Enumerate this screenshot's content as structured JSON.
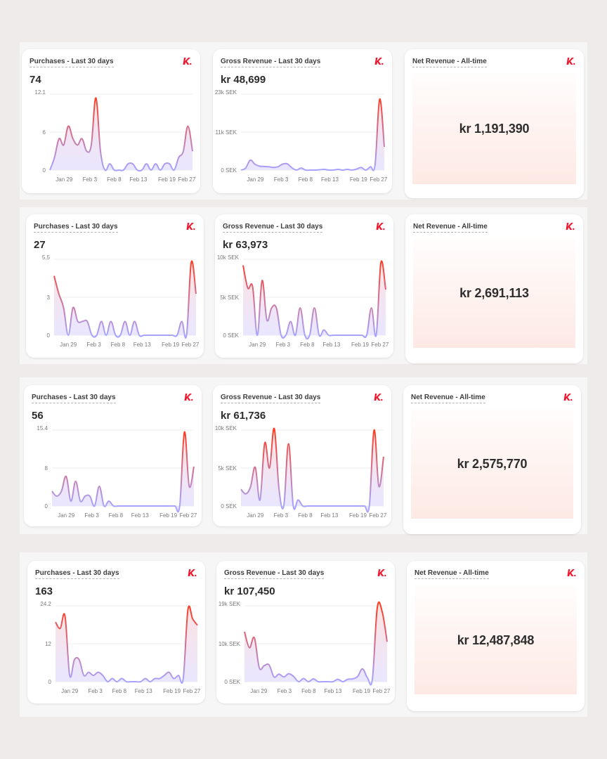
{
  "colors": {
    "line_top": "#ff3b1f",
    "line_bottom": "#a7a3ff",
    "fill_top": "#fde3e1",
    "fill_bottom": "#e9e6ff",
    "brand": "#f0182e"
  },
  "logo_icon": "k-brand-logo-icon",
  "rows": [
    {
      "purchases": {
        "title": "Purchases - Last 30 days",
        "value": "74"
      },
      "gross": {
        "title": "Gross Revenue - Last 30 days",
        "value": "kr 48,699"
      },
      "net": {
        "title": "Net Revenue - All-time",
        "value": "kr 1,191,390"
      }
    },
    {
      "purchases": {
        "title": "Purchases - Last 30 days",
        "value": "27"
      },
      "gross": {
        "title": "Gross Revenue - Last 30 days",
        "value": "kr 63,973"
      },
      "net": {
        "title": "Net Revenue - All-time",
        "value": "kr 2,691,113"
      }
    },
    {
      "purchases": {
        "title": "Purchases - Last 30 days",
        "value": "56"
      },
      "gross": {
        "title": "Gross Revenue - Last 30 days",
        "value": "kr 61,736"
      },
      "net": {
        "title": "Net Revenue - All-time",
        "value": "kr 2,575,770"
      }
    },
    {
      "purchases": {
        "title": "Purchases - Last 30 days",
        "value": "163"
      },
      "gross": {
        "title": "Gross Revenue - Last 30 days",
        "value": "kr 107,450"
      },
      "net": {
        "title": "Net Revenue - All-time",
        "value": "kr 12,487,848"
      }
    }
  ],
  "chart_data": [
    {
      "id": "r0-purchases",
      "type": "area",
      "title": "Purchases - Last 30 days",
      "x_ticks": [
        "Jan 29",
        "Feb 3",
        "Feb 8",
        "Feb 13",
        "Feb 19",
        "Feb 27"
      ],
      "y_ticks": [
        "0",
        "6",
        "12.1"
      ],
      "ylim": [
        0,
        12.1
      ],
      "values": [
        0,
        2,
        5,
        4,
        7,
        5,
        4,
        5,
        3,
        4,
        11.5,
        3,
        0,
        1,
        0,
        0,
        0,
        1,
        1,
        0,
        0,
        1,
        0,
        1,
        0,
        1,
        1,
        0,
        2,
        3,
        7,
        3
      ]
    },
    {
      "id": "r0-gross",
      "type": "area",
      "title": "Gross Revenue - Last 30 days",
      "x_ticks": [
        "Jan 29",
        "Feb 3",
        "Feb 8",
        "Feb 13",
        "Feb 19",
        "Feb 27"
      ],
      "y_ticks": [
        "0 SEK",
        "11k SEK",
        "23k SEK"
      ],
      "ylim": [
        0,
        23000
      ],
      "values": [
        0,
        600,
        3000,
        1800,
        1200,
        1100,
        1000,
        800,
        1000,
        1800,
        1900,
        700,
        0,
        600,
        0,
        0,
        0,
        100,
        200,
        0,
        0,
        200,
        0,
        200,
        0,
        300,
        800,
        0,
        1000,
        1600,
        21500,
        7000
      ]
    },
    {
      "id": "r1-purchases",
      "type": "area",
      "title": "Purchases - Last 30 days",
      "x_ticks": [
        "Jan 29",
        "Feb 3",
        "Feb 8",
        "Feb 13",
        "Feb 19",
        "Feb 27"
      ],
      "y_ticks": [
        "0",
        "3",
        "5.5"
      ],
      "ylim": [
        0,
        5.5
      ],
      "values": [
        4.3,
        3,
        2,
        0,
        2,
        1,
        1,
        1,
        0,
        0,
        1,
        0,
        1,
        0,
        0,
        1,
        0,
        1,
        0,
        0,
        0,
        0,
        0,
        0,
        0,
        0,
        0,
        1,
        0,
        5.3,
        3
      ]
    },
    {
      "id": "r1-gross",
      "type": "area",
      "title": "Gross Revenue - Last 30 days",
      "x_ticks": [
        "Jan 29",
        "Feb 3",
        "Feb 8",
        "Feb 13",
        "Feb 19",
        "Feb 27"
      ],
      "y_ticks": [
        "0 SEK",
        "5k SEK",
        "10k SEK"
      ],
      "ylim": [
        0,
        10000
      ],
      "values": [
        9200,
        6200,
        6400,
        0,
        7200,
        2000,
        3600,
        3600,
        0,
        0,
        1800,
        0,
        3600,
        0,
        0,
        3600,
        0,
        700,
        0,
        0,
        0,
        0,
        0,
        0,
        0,
        0,
        0,
        3600,
        0,
        9600,
        6000
      ]
    },
    {
      "id": "r2-purchases",
      "type": "area",
      "title": "Purchases - Last 30 days",
      "x_ticks": [
        "Jan 29",
        "Feb 3",
        "Feb 8",
        "Feb 13",
        "Feb 19",
        "Feb 27"
      ],
      "y_ticks": [
        "0",
        "8",
        "15.4"
      ],
      "ylim": [
        0,
        15.4
      ],
      "values": [
        3,
        2,
        3,
        6,
        1,
        5,
        1,
        2,
        2,
        0,
        4,
        0,
        1,
        0,
        0,
        0,
        0,
        0,
        0,
        0,
        0,
        0,
        0,
        0,
        0,
        0,
        0,
        0,
        15,
        4,
        8
      ]
    },
    {
      "id": "r2-gross",
      "type": "area",
      "title": "Gross Revenue - Last 30 days",
      "x_ticks": [
        "Jan 29",
        "Feb 3",
        "Feb 8",
        "Feb 13",
        "Feb 19",
        "Feb 27"
      ],
      "y_ticks": [
        "0 SEK",
        "5k SEK",
        "10k SEK"
      ],
      "ylim": [
        0,
        10000
      ],
      "values": [
        2200,
        1600,
        2500,
        5100,
        800,
        8300,
        5000,
        10200,
        2200,
        0,
        8200,
        0,
        800,
        0,
        0,
        0,
        0,
        0,
        0,
        0,
        0,
        0,
        0,
        0,
        0,
        0,
        0,
        0,
        10000,
        2600,
        6500
      ]
    },
    {
      "id": "r3-purchases",
      "type": "area",
      "title": "Purchases - Last 30 days",
      "x_ticks": [
        "Jan 29",
        "Feb 3",
        "Feb 8",
        "Feb 13",
        "Feb 19",
        "Feb 27"
      ],
      "y_ticks": [
        "0",
        "12",
        "24.2"
      ],
      "ylim": [
        0,
        24.2
      ],
      "values": [
        19,
        17,
        21,
        2,
        7,
        7,
        2,
        3,
        2,
        3,
        2,
        0,
        1,
        0,
        1,
        0,
        0,
        0,
        0,
        1,
        0,
        1,
        1,
        2,
        3,
        1,
        2,
        1,
        23,
        20,
        18
      ]
    },
    {
      "id": "r3-gross",
      "type": "area",
      "title": "Gross Revenue - Last 30 days",
      "x_ticks": [
        "Jan 29",
        "Feb 3",
        "Feb 8",
        "Feb 13",
        "Feb 19",
        "Feb 27"
      ],
      "y_ticks": [
        "0 SEK",
        "10k SEK",
        "19k SEK"
      ],
      "ylim": [
        0,
        19000
      ],
      "values": [
        12500,
        8500,
        11000,
        3500,
        4000,
        4200,
        1200,
        1900,
        1200,
        2000,
        1300,
        0,
        800,
        0,
        700,
        0,
        0,
        0,
        0,
        600,
        0,
        600,
        700,
        1300,
        3200,
        1000,
        600,
        18500,
        17500,
        10000
      ]
    }
  ]
}
